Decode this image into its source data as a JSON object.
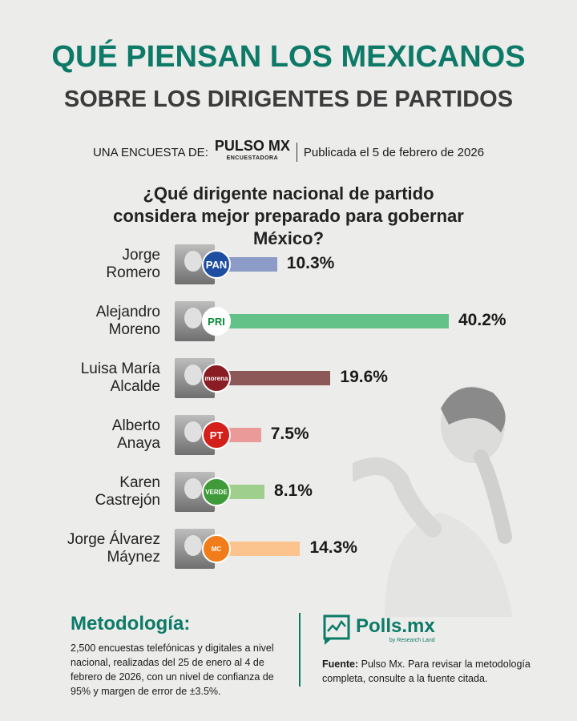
{
  "header": {
    "title_line1": "QUÉ PIENSAN LOS MEXICANOS",
    "title_line2": "SOBRE LOS DIRIGENTES DE PARTIDOS",
    "byline_prefix": "UNA ENCUESTA DE:",
    "pollster_logo": "PULSO MX",
    "pollster_logo_sub": "ENCUESTADORA",
    "published": "Publicada el 5 de febrero de 2026"
  },
  "chart_data": {
    "type": "bar",
    "orientation": "horizontal",
    "title": "¿Qué dirigente nacional de partido considera mejor preparado para gobernar México?",
    "categories": [
      "Jorge Romero",
      "Alejandro Moreno",
      "Luisa María Alcalde",
      "Alberto Anaya",
      "Karen Castrejón",
      "Jorge Álvarez Máynez"
    ],
    "name_lines": [
      [
        "Jorge",
        "Romero"
      ],
      [
        "Alejandro",
        "Moreno"
      ],
      [
        "Luisa María",
        "Alcalde"
      ],
      [
        "Alberto",
        "Anaya"
      ],
      [
        "Karen",
        "Castrejón"
      ],
      [
        "Jorge Álvarez",
        "Máynez"
      ]
    ],
    "parties": [
      "PAN",
      "PRI",
      "morena",
      "PT",
      "VERDE",
      "MC"
    ],
    "values": [
      10.3,
      40.2,
      19.6,
      7.5,
      8.1,
      14.3
    ],
    "labels": [
      "10.3%",
      "40.2%",
      "19.6%",
      "7.5%",
      "8.1%",
      "14.3%"
    ],
    "colors": [
      "#8d9cc6",
      "#63c287",
      "#8c5858",
      "#eb9a9a",
      "#9fcf8c",
      "#fbc38e"
    ],
    "logo_colors": [
      "#1d4ea0",
      "#ffffff",
      "#8a1c24",
      "#d4201a",
      "#3f9b3a",
      "#f07d1a"
    ],
    "xlim": [
      0,
      40.2
    ]
  },
  "methodology": {
    "heading": "Metodología:",
    "text": "2,500 encuestas telefónicas y digitales a nivel nacional, realizadas del 25 de enero al 4 de febrero de 2026, con un nivel de confianza de 95% y margen de error de ±3.5%."
  },
  "source": {
    "brand": "Polls.mx",
    "brand_sub": "by Research Land",
    "label": "Fuente:",
    "text": " Pulso Mx. Para revisar la metodología completa, consulte a la fuente citada."
  }
}
